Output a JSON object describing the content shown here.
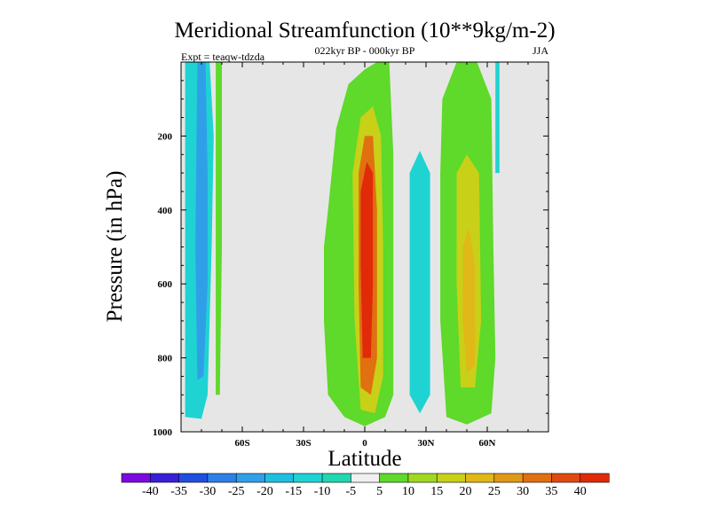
{
  "chart_data": {
    "type": "contour",
    "title": "Meridional Streamfunction (10**9kg/m-2)",
    "subtitle": "022kyr BP - 000kyr BP",
    "left_label": "Expt = teaqw-tdzda",
    "right_label": "JJA",
    "xlabel": "Latitude",
    "ylabel": "Pressure (in hPa)",
    "xlim": [
      -90,
      90
    ],
    "ylim": [
      0,
      1000
    ],
    "y_inverted": true,
    "x_ticks": [
      {
        "value": -60,
        "label": "60S"
      },
      {
        "value": -30,
        "label": "30S"
      },
      {
        "value": 0,
        "label": "0"
      },
      {
        "value": 30,
        "label": "30N"
      },
      {
        "value": 60,
        "label": "60N"
      }
    ],
    "y_ticks": [
      {
        "value": 200,
        "label": "200"
      },
      {
        "value": 400,
        "label": "400"
      },
      {
        "value": 600,
        "label": "600"
      },
      {
        "value": 800,
        "label": "800"
      },
      {
        "value": 1000,
        "label": "1000"
      }
    ],
    "missing_color": "#e6e6e6",
    "colorbar": {
      "labels": [
        "-40",
        "-35",
        "-30",
        "-25",
        "-20",
        "-15",
        "-10",
        "-5",
        "5",
        "10",
        "15",
        "20",
        "25",
        "30",
        "35",
        "40"
      ],
      "colors": [
        "#7a0ae0",
        "#3a1fd8",
        "#1f4fe0",
        "#2f7fe8",
        "#2fa0e8",
        "#1fbfe0",
        "#1fd3d3",
        "#1fd8b0",
        "#f0f0f0",
        "#5fd92a",
        "#a0d820",
        "#c8d018",
        "#e0b818",
        "#e09818",
        "#e07010",
        "#e04a10",
        "#e02a08"
      ]
    },
    "regions": [
      {
        "name": "southern-negative-cell",
        "color": "#1fd3d3",
        "polygon": [
          [
            -88,
            0
          ],
          [
            -76,
            0
          ],
          [
            -74,
            200
          ],
          [
            -75,
            500
          ],
          [
            -77,
            900
          ],
          [
            -80,
            965
          ],
          [
            -88,
            960
          ]
        ]
      },
      {
        "name": "southern-negative-core",
        "color": "#2fa0e8",
        "polygon": [
          [
            -82,
            0
          ],
          [
            -78,
            0
          ],
          [
            -77,
            300
          ],
          [
            -77,
            600
          ],
          [
            -79,
            850
          ],
          [
            -82,
            860
          ],
          [
            -83,
            500
          ]
        ]
      },
      {
        "name": "southern-positive-strip",
        "color": "#5fd92a",
        "polygon": [
          [
            -73,
            0
          ],
          [
            -70,
            0
          ],
          [
            -70,
            500
          ],
          [
            -71,
            900
          ],
          [
            -73,
            900
          ]
        ]
      },
      {
        "name": "tropical-positive-cell",
        "color": "#5fd92a",
        "polygon": [
          [
            -18,
            400
          ],
          [
            -14,
            180
          ],
          [
            -8,
            60
          ],
          [
            0,
            20
          ],
          [
            6,
            0
          ],
          [
            12,
            0
          ],
          [
            14,
            250
          ],
          [
            14,
            600
          ],
          [
            14,
            900
          ],
          [
            10,
            960
          ],
          [
            0,
            985
          ],
          [
            -10,
            960
          ],
          [
            -18,
            900
          ],
          [
            -20,
            700
          ],
          [
            -20,
            500
          ]
        ]
      },
      {
        "name": "tropical-core-15",
        "color": "#c8d018",
        "polygon": [
          [
            -6,
            300
          ],
          [
            -2,
            150
          ],
          [
            4,
            120
          ],
          [
            8,
            200
          ],
          [
            9,
            500
          ],
          [
            9,
            850
          ],
          [
            5,
            950
          ],
          [
            -2,
            940
          ],
          [
            -5,
            700
          ]
        ]
      },
      {
        "name": "tropical-core-30",
        "color": "#e07010",
        "polygon": [
          [
            -3,
            300
          ],
          [
            0,
            200
          ],
          [
            4,
            200
          ],
          [
            6,
            400
          ],
          [
            6,
            800
          ],
          [
            3,
            900
          ],
          [
            -2,
            880
          ],
          [
            -3,
            600
          ]
        ]
      },
      {
        "name": "tropical-core-40",
        "color": "#e02a08",
        "polygon": [
          [
            -2,
            350
          ],
          [
            1,
            270
          ],
          [
            4,
            300
          ],
          [
            4,
            600
          ],
          [
            3,
            800
          ],
          [
            -1,
            800
          ],
          [
            -2,
            550
          ]
        ]
      },
      {
        "name": "northern-positive-cell",
        "color": "#5fd92a",
        "polygon": [
          [
            38,
            100
          ],
          [
            45,
            0
          ],
          [
            55,
            0
          ],
          [
            62,
            100
          ],
          [
            63,
            500
          ],
          [
            64,
            800
          ],
          [
            62,
            950
          ],
          [
            50,
            980
          ],
          [
            40,
            960
          ],
          [
            37,
            700
          ],
          [
            37,
            300
          ]
        ]
      },
      {
        "name": "northern-core-15",
        "color": "#c8d018",
        "polygon": [
          [
            45,
            300
          ],
          [
            50,
            250
          ],
          [
            56,
            300
          ],
          [
            57,
            700
          ],
          [
            54,
            880
          ],
          [
            47,
            880
          ],
          [
            45,
            600
          ]
        ]
      },
      {
        "name": "northern-core-25",
        "color": "#e0b818",
        "polygon": [
          [
            48,
            500
          ],
          [
            51,
            450
          ],
          [
            54,
            550
          ],
          [
            54,
            820
          ],
          [
            50,
            840
          ],
          [
            48,
            700
          ]
        ]
      },
      {
        "name": "northern-negative-strip",
        "color": "#1fd3d3",
        "polygon": [
          [
            22,
            300
          ],
          [
            27,
            240
          ],
          [
            32,
            300
          ],
          [
            32,
            900
          ],
          [
            27,
            950
          ],
          [
            22,
            900
          ]
        ]
      },
      {
        "name": "high-latitude-negative-strip",
        "color": "#1fd3d3",
        "polygon": [
          [
            64,
            0
          ],
          [
            66,
            0
          ],
          [
            66,
            300
          ],
          [
            64,
            300
          ]
        ]
      }
    ]
  }
}
